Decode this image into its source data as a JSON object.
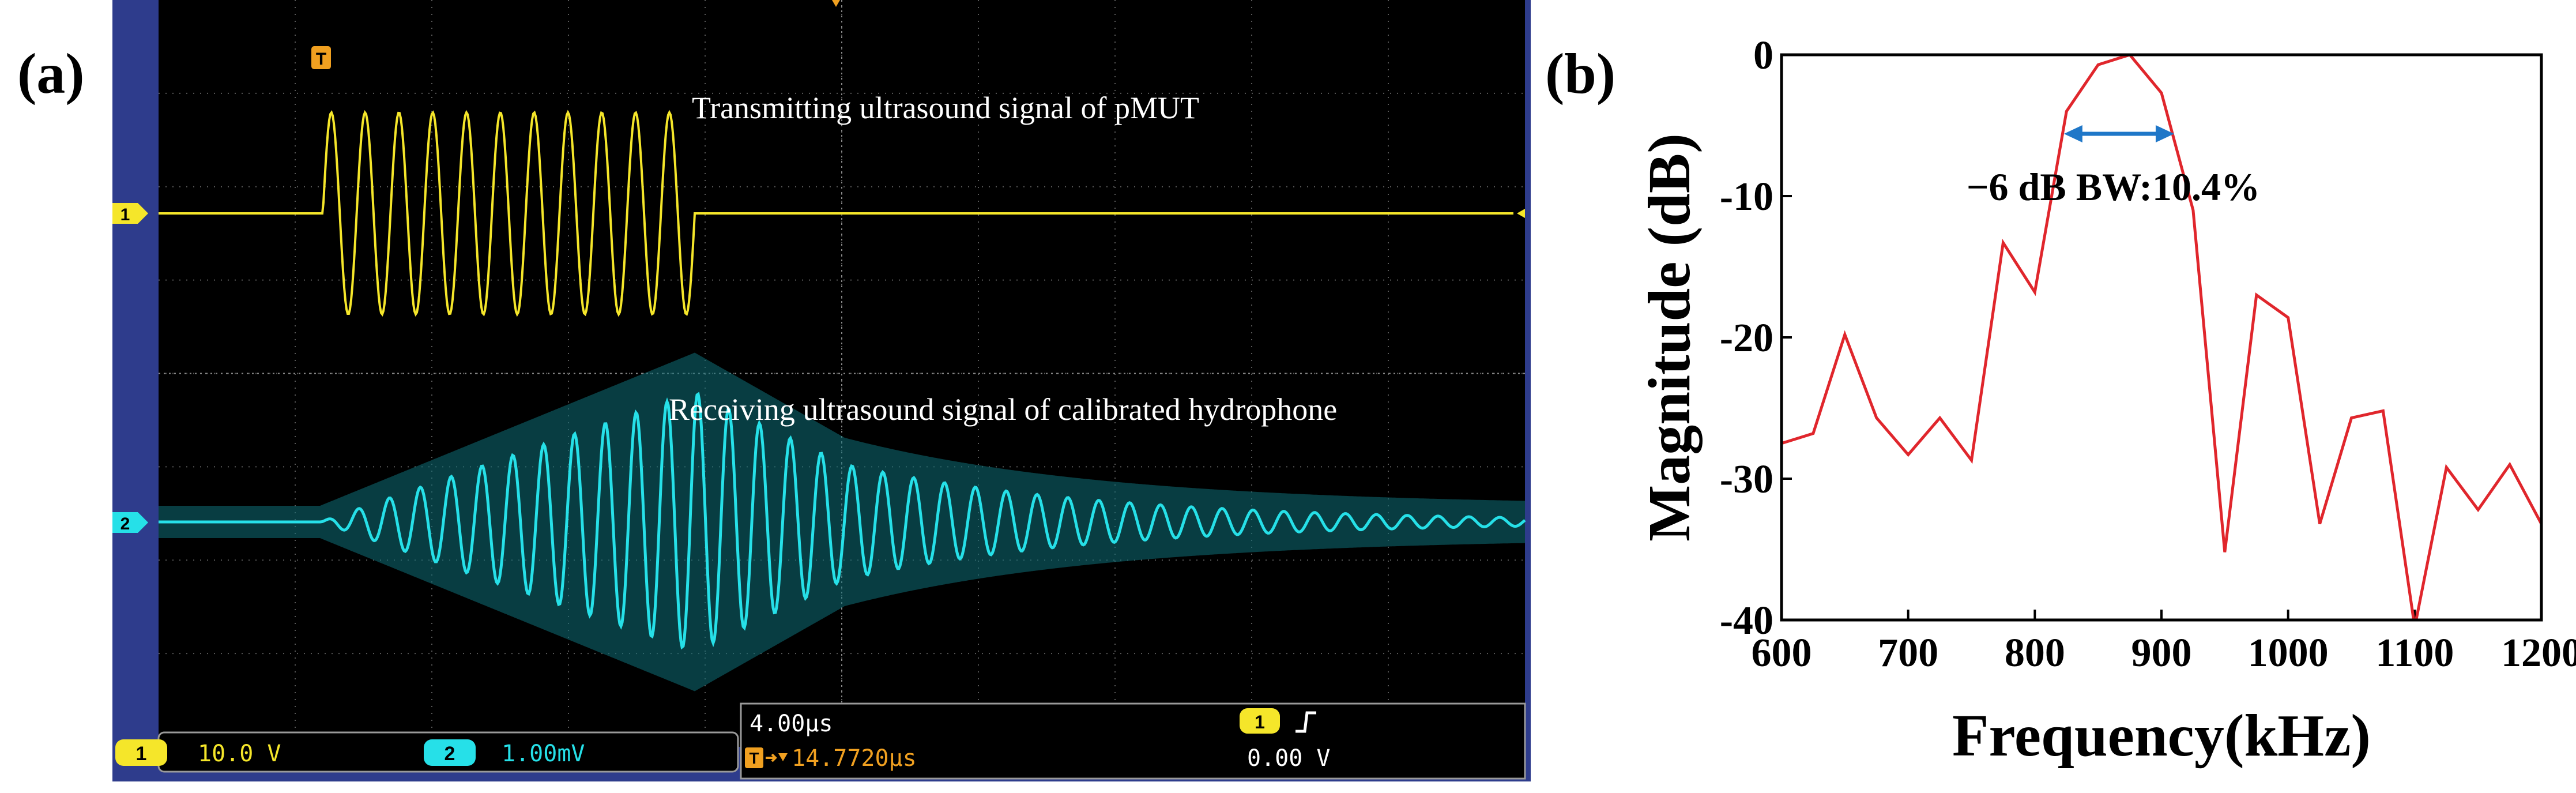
{
  "figure": {
    "panel_a_label": "(a)",
    "panel_b_label": "(b)"
  },
  "oscilloscope": {
    "trigger_marker": "T",
    "ch1": {
      "marker": "1",
      "annotation": "Transmitting ultrasound signal of pMUT",
      "scale": "10.0 V",
      "color": "#f5e62a"
    },
    "ch2": {
      "marker": "2",
      "annotation": "Receiving ultrasound signal of calibrated hydrophone",
      "scale": "1.00mV",
      "color": "#26e0e8"
    },
    "timebase": "4.00µs",
    "trigger_delay": "14.7720µs",
    "trigger_level": "0.00 V",
    "trigger_source": "1",
    "trigger_slope_icon": "rising-edge-icon"
  },
  "chart_data": {
    "type": "line",
    "title": "",
    "xlabel": "Frequency(kHz)",
    "ylabel": "Magnitude (dB)",
    "xlim": [
      600,
      1200
    ],
    "ylim": [
      -40,
      0
    ],
    "xticks": [
      600,
      700,
      800,
      900,
      1000,
      1100,
      1200
    ],
    "yticks": [
      0,
      -10,
      -20,
      -30,
      -40
    ],
    "grid": false,
    "series": [
      {
        "color": "#e0262c",
        "x": [
          600,
          625,
          650,
          675,
          700,
          725,
          750,
          775,
          800,
          825,
          850,
          875,
          900,
          925,
          950,
          975,
          1000,
          1025,
          1050,
          1075,
          1100,
          1125,
          1150,
          1175,
          1200
        ],
        "y": [
          -27.5,
          -26.8,
          -19.8,
          -25.7,
          -28.3,
          -25.7,
          -28.7,
          -13.3,
          -16.8,
          -4.0,
          -0.7,
          0.0,
          -2.7,
          -11.0,
          -35.2,
          -17.0,
          -18.6,
          -33.2,
          -25.7,
          -25.2,
          -40.5,
          -29.2,
          -32.2,
          -29.0,
          -33.2
        ]
      }
    ],
    "annotations": [
      {
        "text": "−6 dB BW:10.4%",
        "x_range": [
          823,
          910
        ],
        "y": -6,
        "arrow_color": "#1f77c8"
      }
    ]
  }
}
